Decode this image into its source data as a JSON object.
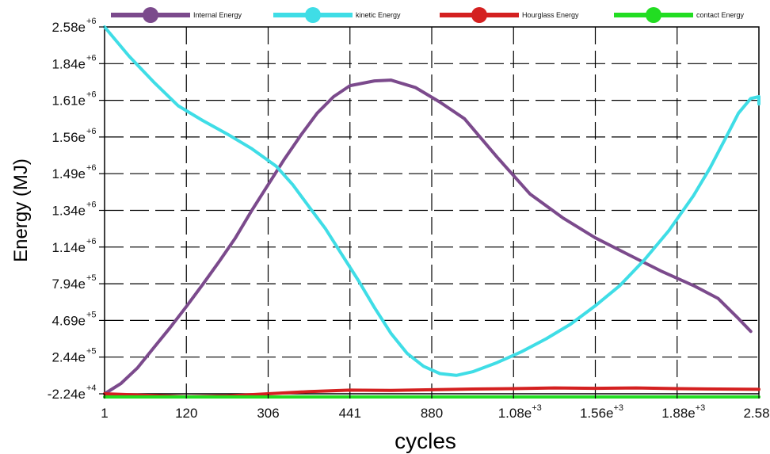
{
  "chart_data": {
    "type": "line",
    "title": "",
    "xlabel": "cycles",
    "ylabel": "Energy (MJ)",
    "x_ticks": [
      {
        "base": "1",
        "sup": ""
      },
      {
        "base": "120",
        "sup": ""
      },
      {
        "base": "306",
        "sup": ""
      },
      {
        "base": "441",
        "sup": ""
      },
      {
        "base": "880",
        "sup": ""
      },
      {
        "base": "1.08e",
        "sup": "+3"
      },
      {
        "base": "1.56e",
        "sup": "+3"
      },
      {
        "base": "1.88e",
        "sup": "+3"
      },
      {
        "base": "2.58e",
        "sup": "+3"
      }
    ],
    "y_ticks": [
      {
        "base": "2.58e",
        "sup": "+6"
      },
      {
        "base": "1.84e",
        "sup": "+6"
      },
      {
        "base": "1.61e",
        "sup": "+6"
      },
      {
        "base": "1.56e",
        "sup": "+6"
      },
      {
        "base": "1.49e",
        "sup": "+6"
      },
      {
        "base": "1.34e",
        "sup": "+6"
      },
      {
        "base": "1.14e",
        "sup": "+6"
      },
      {
        "base": "7.94e",
        "sup": "+5"
      },
      {
        "base": "4.69e",
        "sup": "+5"
      },
      {
        "base": "2.44e",
        "sup": "+5"
      },
      {
        "base": "-2.24e",
        "sup": "+4"
      }
    ],
    "grid": true,
    "legend_position": "top",
    "note": "Axis tick labels are non-linear; series positions are given as fractional offsets along the printed tick sequence (x in tick-index units 0..8, y in tick-index units 0..10 from top tick '2.58e+6').",
    "series": [
      {
        "name": "Internal Energy",
        "color": "#7b4a8c",
        "points": [
          [
            0,
            10
          ],
          [
            0.4,
            9.72
          ],
          [
            0.8,
            9.3
          ],
          [
            1.2,
            8.75
          ],
          [
            1.6,
            8.2
          ],
          [
            2,
            7.62
          ],
          [
            2.4,
            7.02
          ],
          [
            2.8,
            6.4
          ],
          [
            3.2,
            5.75
          ],
          [
            3.6,
            5.0
          ],
          [
            4,
            4.3
          ],
          [
            4.4,
            3.6
          ],
          [
            4.8,
            2.95
          ],
          [
            5.2,
            2.35
          ],
          [
            5.6,
            1.9
          ],
          [
            6,
            1.6
          ],
          [
            6.6,
            1.47
          ],
          [
            7,
            1.45
          ],
          [
            7.6,
            1.65
          ],
          [
            8.2,
            2.05
          ],
          [
            8.8,
            2.5
          ],
          [
            9.6,
            3.55
          ],
          [
            10.4,
            4.55
          ],
          [
            11.2,
            5.2
          ],
          [
            12,
            5.75
          ],
          [
            12.8,
            6.2
          ],
          [
            13.6,
            6.65
          ],
          [
            14.4,
            7.05
          ],
          [
            15,
            7.4
          ],
          [
            15.5,
            7.95
          ],
          [
            15.8,
            8.3
          ]
        ]
      },
      {
        "name": "kinetic Energy",
        "color": "#3fdde6",
        "points": [
          [
            0,
            0
          ],
          [
            0.6,
            0.8
          ],
          [
            1.2,
            1.5
          ],
          [
            1.8,
            2.15
          ],
          [
            2.4,
            2.55
          ],
          [
            3,
            2.92
          ],
          [
            3.6,
            3.32
          ],
          [
            4.2,
            3.8
          ],
          [
            4.6,
            4.3
          ],
          [
            5,
            4.9
          ],
          [
            5.4,
            5.5
          ],
          [
            5.8,
            6.2
          ],
          [
            6.2,
            6.9
          ],
          [
            6.6,
            7.65
          ],
          [
            7,
            8.35
          ],
          [
            7.4,
            8.9
          ],
          [
            7.8,
            9.25
          ],
          [
            8.2,
            9.45
          ],
          [
            8.6,
            9.5
          ],
          [
            9,
            9.4
          ],
          [
            9.6,
            9.15
          ],
          [
            10.2,
            8.85
          ],
          [
            10.8,
            8.5
          ],
          [
            11.4,
            8.1
          ],
          [
            12,
            7.6
          ],
          [
            12.6,
            7.05
          ],
          [
            13.2,
            6.35
          ],
          [
            13.8,
            5.55
          ],
          [
            14.4,
            4.6
          ],
          [
            14.8,
            3.85
          ],
          [
            15.2,
            3.0
          ],
          [
            15.5,
            2.35
          ],
          [
            15.8,
            1.95
          ],
          [
            16,
            1.9
          ],
          [
            16.15,
            2.1
          ]
        ]
      },
      {
        "name": "Hourglass Energy",
        "color": "#d42020",
        "points": [
          [
            0,
            10.0
          ],
          [
            1,
            10.04
          ],
          [
            2,
            10.08
          ],
          [
            3,
            10.06
          ],
          [
            4,
            10.0
          ],
          [
            5,
            9.94
          ],
          [
            6,
            9.9
          ],
          [
            7,
            9.91
          ],
          [
            8,
            9.89
          ],
          [
            9,
            9.87
          ],
          [
            10,
            9.86
          ],
          [
            11,
            9.84
          ],
          [
            12,
            9.85
          ],
          [
            13,
            9.84
          ],
          [
            14,
            9.86
          ],
          [
            15,
            9.87
          ],
          [
            16,
            9.88
          ]
        ]
      },
      {
        "name": "contact Energy",
        "color": "#22dd22",
        "points": [
          [
            0,
            10.24
          ],
          [
            1,
            10.22
          ],
          [
            2,
            10.2
          ],
          [
            3,
            10.16
          ],
          [
            4,
            10.13
          ],
          [
            5,
            10.14
          ],
          [
            6,
            10.18
          ],
          [
            7,
            10.2
          ],
          [
            8,
            10.22
          ],
          [
            9,
            10.23
          ],
          [
            10,
            10.24
          ],
          [
            11,
            10.25
          ],
          [
            12,
            10.25
          ],
          [
            13,
            10.26
          ],
          [
            14,
            10.26
          ],
          [
            15,
            10.26
          ],
          [
            16,
            10.26
          ]
        ]
      }
    ]
  }
}
